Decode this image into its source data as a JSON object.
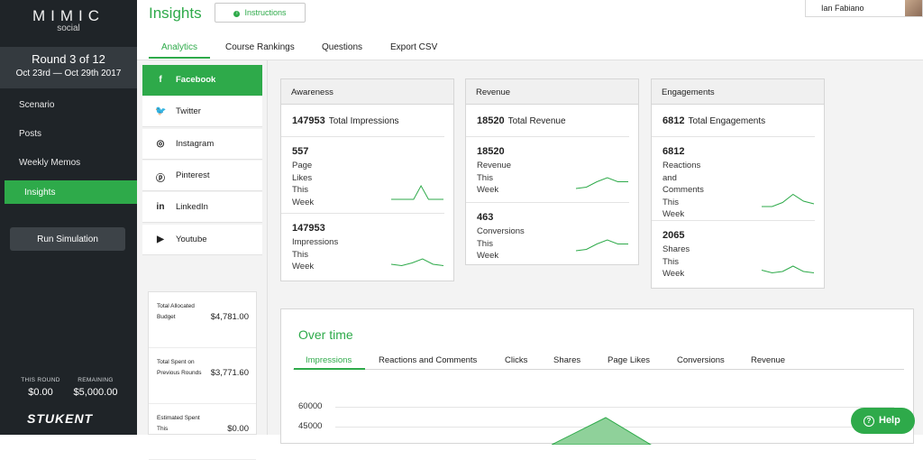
{
  "app": {
    "logo": "MIMIC",
    "logo_sub": "social",
    "page_title": "Insights",
    "instructions_label": "Instructions",
    "user_name": "Ian Fabiano"
  },
  "round": {
    "title": "Round 3 of 12",
    "dates": "Oct 23rd — Oct 29th 2017"
  },
  "nav": {
    "items": [
      "Scenario",
      "Posts",
      "Weekly Memos",
      "Insights"
    ],
    "active": "Insights",
    "run_label": "Run Simulation"
  },
  "footer": {
    "this_round_label": "THIS ROUND",
    "this_round_value": "$0.00",
    "remaining_label": "REMAINING",
    "remaining_value": "$5,000.00",
    "brand": "STUKENT"
  },
  "tabs": {
    "items": [
      "Analytics",
      "Course Rankings",
      "Questions",
      "Export CSV"
    ],
    "active": "Analytics"
  },
  "socials": [
    {
      "label": "Facebook",
      "icon": "facebook-icon",
      "glyph": "f",
      "active": true
    },
    {
      "label": "Twitter",
      "icon": "twitter-icon",
      "glyph": "🐦",
      "active": false
    },
    {
      "label": "Instagram",
      "icon": "instagram-icon",
      "glyph": "◎",
      "active": false
    },
    {
      "label": "Pinterest",
      "icon": "pinterest-icon",
      "glyph": "ⓟ",
      "active": false
    },
    {
      "label": "LinkedIn",
      "icon": "linkedin-icon",
      "glyph": "in",
      "active": false
    },
    {
      "label": "Youtube",
      "icon": "youtube-icon",
      "glyph": "▶",
      "active": false
    }
  ],
  "budget": [
    {
      "label": "Total Allocated Budget",
      "value": "$4,781.00"
    },
    {
      "label": "Total Spent on Previous Rounds",
      "value": "$3,771.60"
    },
    {
      "label": "Estimated Spent This",
      "value": "$0.00"
    }
  ],
  "cards": [
    {
      "title": "Awareness",
      "total_value": "147953",
      "total_label": "Total Impressions",
      "metrics": [
        {
          "value": "557",
          "label": "Page Likes This Week",
          "trend": [
            0,
            0,
            0,
            0,
            1,
            0,
            0,
            0
          ]
        },
        {
          "value": "147953",
          "label": "Impressions This Week",
          "trend": [
            0.2,
            0.1,
            0.3,
            0.6,
            0.2,
            0.1
          ]
        }
      ]
    },
    {
      "title": "Revenue",
      "total_value": "18520",
      "total_label": "Total Revenue",
      "metrics": [
        {
          "value": "18520",
          "label": "Revenue This Week",
          "trend": [
            0,
            0.1,
            0.5,
            0.8,
            0.5,
            0.5
          ]
        },
        {
          "value": "463",
          "label": "Conversions This Week",
          "trend": [
            0,
            0.1,
            0.5,
            0.8,
            0.5,
            0.5
          ]
        }
      ]
    },
    {
      "title": "Engagements",
      "total_value": "6812",
      "total_label": "Total Engagements",
      "metrics": [
        {
          "value": "6812",
          "label": "Reactions and Comments This Week",
          "trend": [
            0,
            0,
            0.3,
            0.9,
            0.4,
            0.2
          ]
        },
        {
          "value": "2065",
          "label": "Shares This Week",
          "trend": [
            0.3,
            0.1,
            0.2,
            0.6,
            0.2,
            0.1
          ]
        }
      ]
    }
  ],
  "over_time": {
    "title": "Over time",
    "tabs": [
      "Impressions",
      "Reactions and Comments",
      "Clicks",
      "Shares",
      "Page Likes",
      "Conversions",
      "Revenue"
    ],
    "active": "Impressions",
    "y_ticks": [
      "60000",
      "45000"
    ]
  },
  "help_label": "Help",
  "accent": "#2eaa4a"
}
